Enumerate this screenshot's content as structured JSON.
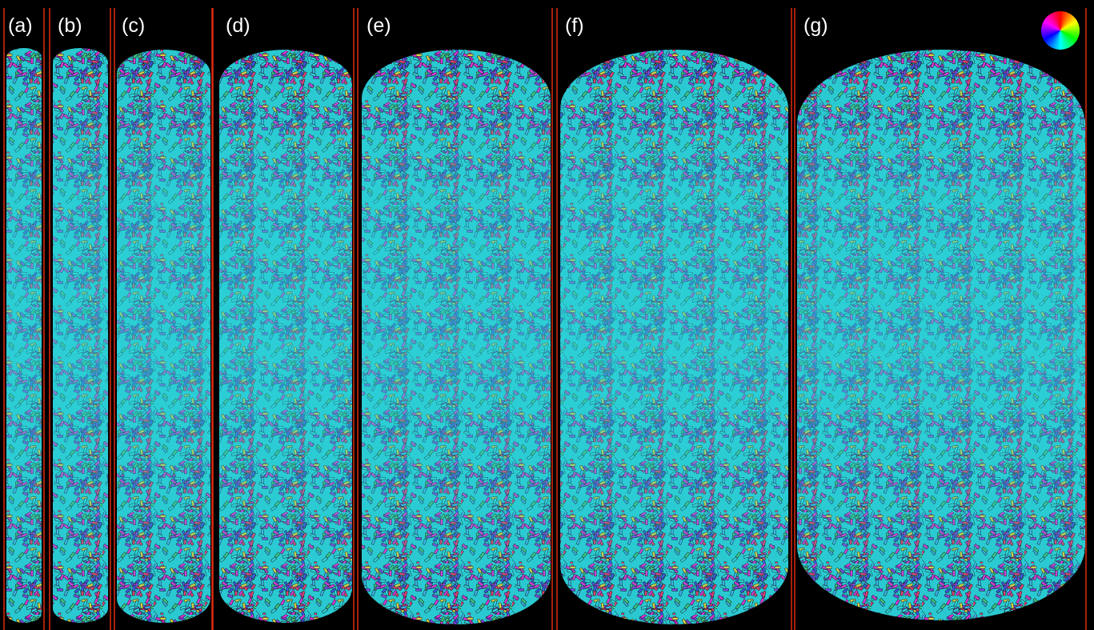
{
  "panels": [
    {
      "label": "(a)"
    },
    {
      "label": "(b)"
    },
    {
      "label": "(c)"
    },
    {
      "label": "(d)"
    },
    {
      "label": "(e)"
    },
    {
      "label": "(f)"
    },
    {
      "label": "(g)"
    }
  ]
}
